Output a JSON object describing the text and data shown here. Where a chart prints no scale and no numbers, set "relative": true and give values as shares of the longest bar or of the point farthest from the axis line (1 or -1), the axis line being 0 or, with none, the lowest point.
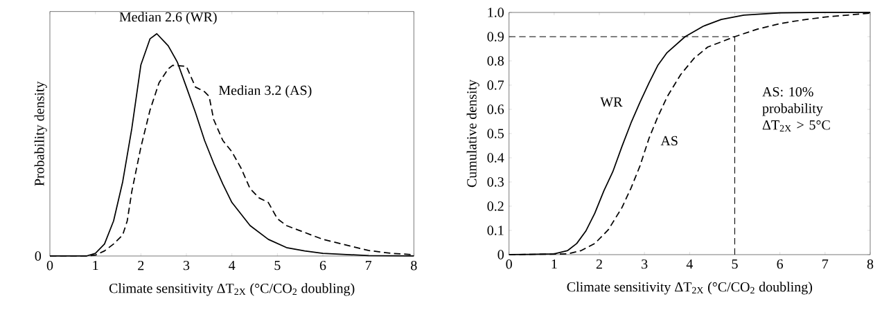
{
  "chart_data": [
    {
      "type": "line",
      "relative": true,
      "xlabel": "Climate sensitivity ΔT$_{2X}$ (°C/CO$_{2}$ doubling)",
      "ylabel": "Probability density",
      "xlim": [
        0,
        8
      ],
      "xticks": [
        0,
        1,
        2,
        3,
        4,
        5,
        6,
        7,
        8
      ],
      "annotations": [
        "Median 2.6 (WR)",
        "Median 3.2 (AS)",
        "0"
      ],
      "series": [
        {
          "color": "#000000",
          "line_style": "solid",
          "x": [
            0,
            0.8,
            1.0,
            1.2,
            1.4,
            1.6,
            1.8,
            2.0,
            2.2,
            2.35,
            2.6,
            2.8,
            3.0,
            3.2,
            3.4,
            3.6,
            3.8,
            4.0,
            4.4,
            4.8,
            5.2,
            5.6,
            6.0,
            7.0,
            8.0
          ],
          "values": [
            0,
            0,
            0.012,
            0.054,
            0.158,
            0.334,
            0.573,
            0.86,
            0.977,
            1.0,
            0.946,
            0.873,
            0.76,
            0.645,
            0.52,
            0.417,
            0.324,
            0.241,
            0.137,
            0.075,
            0.038,
            0.023,
            0.012,
            0.002,
            0
          ]
        },
        {
          "color": "#000000",
          "line_style": "dashed",
          "x": [
            0,
            0.8,
            1.0,
            1.2,
            1.4,
            1.6,
            1.7,
            1.8,
            2.0,
            2.2,
            2.4,
            2.6,
            2.7,
            2.9,
            3.0,
            3.2,
            3.4,
            3.5,
            3.6,
            3.8,
            4.0,
            4.2,
            4.4,
            4.6,
            4.8,
            5.0,
            5.2,
            5.6,
            6.0,
            6.5,
            7.0,
            7.5,
            8.0
          ],
          "values": [
            0,
            0,
            0.004,
            0.023,
            0.054,
            0.095,
            0.158,
            0.29,
            0.49,
            0.656,
            0.78,
            0.842,
            0.858,
            0.855,
            0.853,
            0.76,
            0.739,
            0.718,
            0.614,
            0.52,
            0.469,
            0.396,
            0.303,
            0.261,
            0.241,
            0.168,
            0.137,
            0.106,
            0.075,
            0.05,
            0.025,
            0.012,
            0.006
          ]
        }
      ]
    },
    {
      "type": "line",
      "xlabel": "Climate sensitivity ΔT$_{2X}$ (°C/CO$_{2}$ doubling)",
      "ylabel": "Cumulative density",
      "xlim": [
        0,
        8
      ],
      "xticks": [
        0,
        1,
        2,
        3,
        4,
        5,
        6,
        7,
        8
      ],
      "ylim": [
        0,
        1
      ],
      "yticks": [
        0,
        0.1,
        0.2,
        0.3,
        0.4,
        0.5,
        0.6,
        0.7,
        0.8,
        0.9,
        {
          "value": 1,
          "label": "1.0"
        }
      ],
      "annotations": [
        "AS:  10% probability ΔT$_{2X}$ > 5°C"
      ],
      "ref_lines": [
        {
          "axis": "y",
          "value": 0.9,
          "color": "#000000",
          "line_style": "dashed"
        },
        {
          "axis": "x",
          "value": 5,
          "color": "#000000",
          "line_style": "dashed"
        }
      ],
      "series": [
        {
          "name": "WR",
          "color": "#000000",
          "line_style": "solid",
          "x": [
            0,
            1.0,
            1.3,
            1.5,
            1.7,
            1.9,
            2.1,
            2.3,
            2.5,
            2.7,
            2.9,
            3.1,
            3.3,
            3.5,
            3.9,
            4.3,
            4.7,
            5.2,
            6.0,
            7.0,
            8.0
          ],
          "values": [
            0,
            0.003,
            0.017,
            0.046,
            0.097,
            0.171,
            0.263,
            0.343,
            0.446,
            0.543,
            0.629,
            0.709,
            0.783,
            0.834,
            0.9,
            0.943,
            0.971,
            0.989,
            0.998,
            1.0,
            1.0
          ]
        },
        {
          "name": "AS",
          "color": "#000000",
          "line_style": "dashed",
          "x": [
            0,
            1.3,
            1.6,
            1.9,
            2.2,
            2.5,
            2.7,
            2.9,
            3.1,
            3.3,
            3.5,
            3.8,
            4.1,
            4.4,
            5.0,
            5.5,
            6.0,
            6.5,
            7.0,
            7.5,
            8.0
          ],
          "values": [
            0,
            0.003,
            0.017,
            0.046,
            0.103,
            0.194,
            0.274,
            0.366,
            0.48,
            0.571,
            0.651,
            0.743,
            0.811,
            0.857,
            0.9,
            0.931,
            0.954,
            0.969,
            0.981,
            0.989,
            0.997
          ]
        }
      ]
    }
  ]
}
